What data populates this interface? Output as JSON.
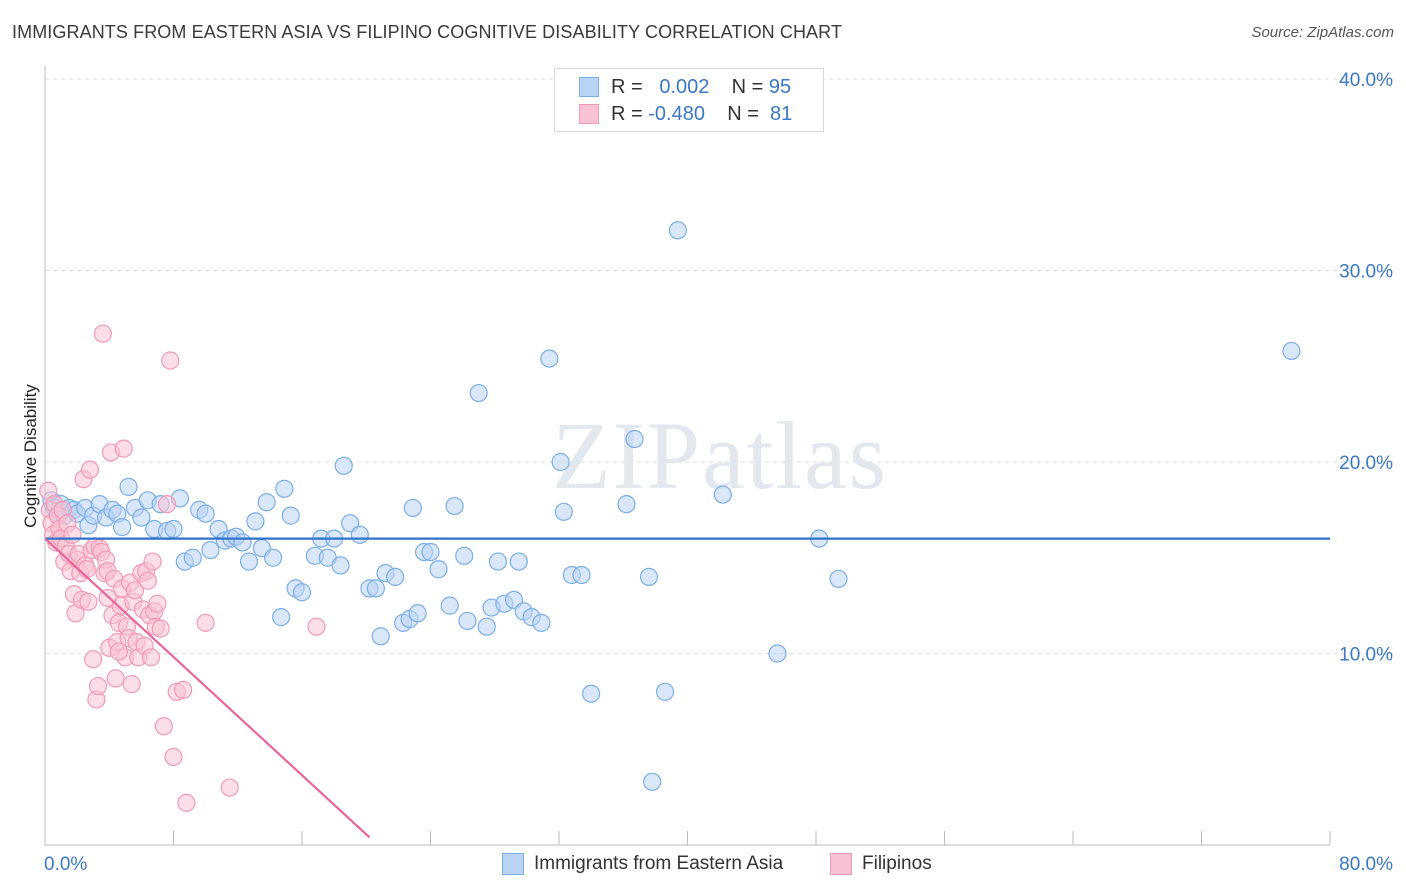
{
  "chart_data": {
    "type": "scatter",
    "title": "IMMIGRANTS FROM EASTERN ASIA VS FILIPINO COGNITIVE DISABILITY CORRELATION CHART",
    "source": "Source: ZipAtlas.com",
    "xlabel": "",
    "ylabel": "Cognitive Disability",
    "xlim": [
      0,
      80
    ],
    "ylim": [
      0,
      40
    ],
    "x_tick_labels": [
      "0.0%",
      "80.0%"
    ],
    "y_ticks": [
      10,
      20,
      30,
      40
    ],
    "y_tick_labels": [
      "10.0%",
      "20.0%",
      "30.0%",
      "40.0%"
    ],
    "grid": true,
    "watermark": "ZIPatlas",
    "legend_stats": [
      {
        "r_label": "R =",
        "r_value": "0.002",
        "n_label": "N =",
        "n_value": "95"
      },
      {
        "r_label": "R =",
        "r_value": "-0.480",
        "n_label": "N =",
        "n_value": "81"
      }
    ],
    "series": [
      {
        "name": "Immigrants from Eastern Asia",
        "color": "#7aaee8",
        "fill": "#b9d3f2",
        "trend": {
          "x0": 0,
          "y0": 16.0,
          "x1": 80,
          "y1": 16.0,
          "color": "#2f72c8"
        },
        "points": [
          [
            0.4,
            18.0
          ],
          [
            0.6,
            17.6
          ],
          [
            0.8,
            17.3
          ],
          [
            1.0,
            17.8
          ],
          [
            1.2,
            17.2
          ],
          [
            1.5,
            17.6
          ],
          [
            1.8,
            17.5
          ],
          [
            2.0,
            17.3
          ],
          [
            2.5,
            17.6
          ],
          [
            2.7,
            16.7
          ],
          [
            3.0,
            17.2
          ],
          [
            3.4,
            17.8
          ],
          [
            3.8,
            17.1
          ],
          [
            4.2,
            17.5
          ],
          [
            4.5,
            17.3
          ],
          [
            4.8,
            16.6
          ],
          [
            5.2,
            18.7
          ],
          [
            5.6,
            17.6
          ],
          [
            6.0,
            17.1
          ],
          [
            6.4,
            18.0
          ],
          [
            6.8,
            16.5
          ],
          [
            7.2,
            17.8
          ],
          [
            7.6,
            16.4
          ],
          [
            8.0,
            16.5
          ],
          [
            8.4,
            18.1
          ],
          [
            8.7,
            14.8
          ],
          [
            9.2,
            15.0
          ],
          [
            9.6,
            17.5
          ],
          [
            10.0,
            17.3
          ],
          [
            10.3,
            15.4
          ],
          [
            10.8,
            16.5
          ],
          [
            11.2,
            15.9
          ],
          [
            11.6,
            16.0
          ],
          [
            11.9,
            16.1
          ],
          [
            12.3,
            15.8
          ],
          [
            12.7,
            14.8
          ],
          [
            13.1,
            16.9
          ],
          [
            13.5,
            15.5
          ],
          [
            13.8,
            17.9
          ],
          [
            14.2,
            15.0
          ],
          [
            14.9,
            18.6
          ],
          [
            15.3,
            17.2
          ],
          [
            15.6,
            13.4
          ],
          [
            16.0,
            13.2
          ],
          [
            14.7,
            11.9
          ],
          [
            16.8,
            15.1
          ],
          [
            17.2,
            16.0
          ],
          [
            17.6,
            15.0
          ],
          [
            18.0,
            16.0
          ],
          [
            18.4,
            14.6
          ],
          [
            18.6,
            19.8
          ],
          [
            19.0,
            16.8
          ],
          [
            19.6,
            16.2
          ],
          [
            20.2,
            13.4
          ],
          [
            20.6,
            13.4
          ],
          [
            20.9,
            10.9
          ],
          [
            21.2,
            14.2
          ],
          [
            21.8,
            14.0
          ],
          [
            22.3,
            11.6
          ],
          [
            22.7,
            11.8
          ],
          [
            22.9,
            17.6
          ],
          [
            23.2,
            12.1
          ],
          [
            23.6,
            15.3
          ],
          [
            24.0,
            15.3
          ],
          [
            24.5,
            14.4
          ],
          [
            25.2,
            12.5
          ],
          [
            25.5,
            17.7
          ],
          [
            26.1,
            15.1
          ],
          [
            26.3,
            11.7
          ],
          [
            27.5,
            11.4
          ],
          [
            27.0,
            23.6
          ],
          [
            27.8,
            12.4
          ],
          [
            28.2,
            14.8
          ],
          [
            28.6,
            12.6
          ],
          [
            29.2,
            12.8
          ],
          [
            29.5,
            14.8
          ],
          [
            29.8,
            12.2
          ],
          [
            30.3,
            11.9
          ],
          [
            30.9,
            11.6
          ],
          [
            31.4,
            25.4
          ],
          [
            32.1,
            20.0
          ],
          [
            32.3,
            17.4
          ],
          [
            32.8,
            14.1
          ],
          [
            33.4,
            14.1
          ],
          [
            34.0,
            7.9
          ],
          [
            36.2,
            17.8
          ],
          [
            36.7,
            21.2
          ],
          [
            37.6,
            14.0
          ],
          [
            37.8,
            3.3
          ],
          [
            38.6,
            8.0
          ],
          [
            39.4,
            32.1
          ],
          [
            42.2,
            18.3
          ],
          [
            45.6,
            10.0
          ],
          [
            48.2,
            16.0
          ],
          [
            49.4,
            13.9
          ],
          [
            77.6,
            25.8
          ]
        ]
      },
      {
        "name": "Filipinos",
        "color": "#f29ab5",
        "fill": "#f7c2d3",
        "trend": {
          "x0": 0,
          "y0": 16.0,
          "x1": 20.2,
          "y1": 0.4,
          "color": "#e8659a"
        },
        "points": [
          [
            0.2,
            18.5
          ],
          [
            0.3,
            17.5
          ],
          [
            0.4,
            16.8
          ],
          [
            0.5,
            16.2
          ],
          [
            0.6,
            17.8
          ],
          [
            0.7,
            15.8
          ],
          [
            0.8,
            17.2
          ],
          [
            0.9,
            16.5
          ],
          [
            1.0,
            16.0
          ],
          [
            1.1,
            17.5
          ],
          [
            1.2,
            14.8
          ],
          [
            1.3,
            15.6
          ],
          [
            1.4,
            16.8
          ],
          [
            1.5,
            15.2
          ],
          [
            1.6,
            14.3
          ],
          [
            1.7,
            16.2
          ],
          [
            1.8,
            13.1
          ],
          [
            1.9,
            12.1
          ],
          [
            2.0,
            14.9
          ],
          [
            2.1,
            15.2
          ],
          [
            2.2,
            14.2
          ],
          [
            2.3,
            12.8
          ],
          [
            2.4,
            19.1
          ],
          [
            2.5,
            14.6
          ],
          [
            2.6,
            14.4
          ],
          [
            2.7,
            12.7
          ],
          [
            2.8,
            19.6
          ],
          [
            2.9,
            15.4
          ],
          [
            3.0,
            9.7
          ],
          [
            3.1,
            15.6
          ],
          [
            3.2,
            7.6
          ],
          [
            3.3,
            8.3
          ],
          [
            3.4,
            15.5
          ],
          [
            3.5,
            15.3
          ],
          [
            3.6,
            26.7
          ],
          [
            3.7,
            14.2
          ],
          [
            3.8,
            14.9
          ],
          [
            3.9,
            14.3
          ],
          [
            4.0,
            10.3
          ],
          [
            4.1,
            20.5
          ],
          [
            4.2,
            12.0
          ],
          [
            4.3,
            13.9
          ],
          [
            4.4,
            8.7
          ],
          [
            4.5,
            10.6
          ],
          [
            4.6,
            11.6
          ],
          [
            4.7,
            12.5
          ],
          [
            4.8,
            13.4
          ],
          [
            4.9,
            20.7
          ],
          [
            5.0,
            9.8
          ],
          [
            5.1,
            11.4
          ],
          [
            5.2,
            10.8
          ],
          [
            5.3,
            13.7
          ],
          [
            5.4,
            8.4
          ],
          [
            5.5,
            12.7
          ],
          [
            5.6,
            13.3
          ],
          [
            5.7,
            10.6
          ],
          [
            5.8,
            9.8
          ],
          [
            6.0,
            14.2
          ],
          [
            6.1,
            12.3
          ],
          [
            6.2,
            10.4
          ],
          [
            6.3,
            14.3
          ],
          [
            6.4,
            13.8
          ],
          [
            6.5,
            12.0
          ],
          [
            6.6,
            9.8
          ],
          [
            6.7,
            14.8
          ],
          [
            6.8,
            12.2
          ],
          [
            6.9,
            11.4
          ],
          [
            7.0,
            12.6
          ],
          [
            7.2,
            11.3
          ],
          [
            7.4,
            6.2
          ],
          [
            7.6,
            17.8
          ],
          [
            7.8,
            25.3
          ],
          [
            8.0,
            4.6
          ],
          [
            8.2,
            8.0
          ],
          [
            8.6,
            8.1
          ],
          [
            8.8,
            2.2
          ],
          [
            10.0,
            11.6
          ],
          [
            11.5,
            3.0
          ],
          [
            16.9,
            11.4
          ],
          [
            4.6,
            10.1
          ],
          [
            3.9,
            12.9
          ]
        ]
      }
    ]
  }
}
